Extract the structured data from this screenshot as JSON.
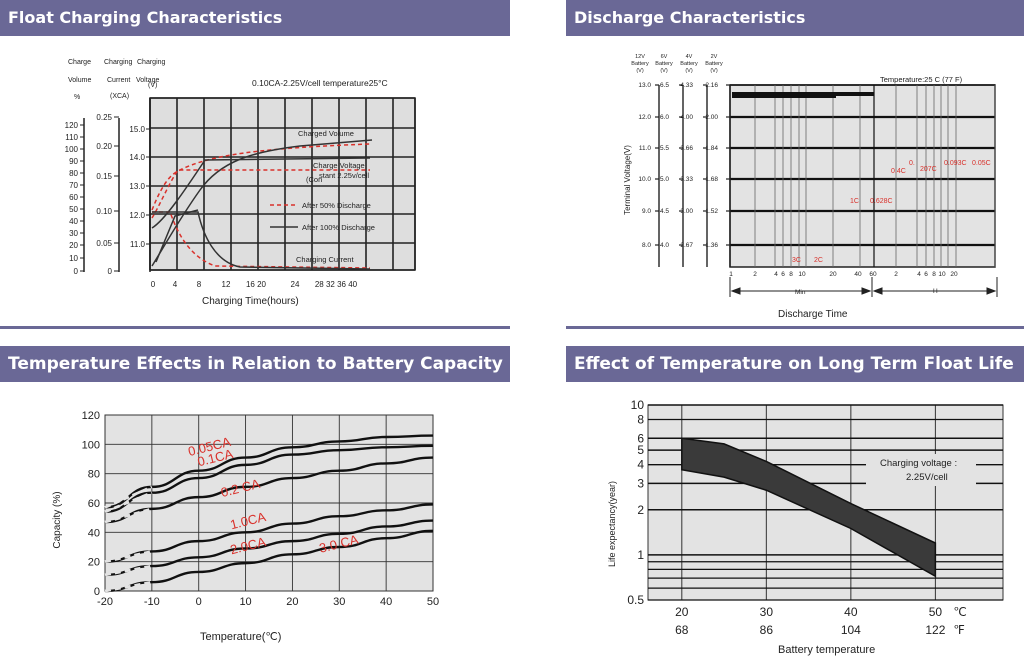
{
  "panels": {
    "float": {
      "title": "Float Charging Characteristics"
    },
    "discharge": {
      "title": "Discharge Characteristics"
    },
    "temp_capacity": {
      "title": "Temperature Effects in Relation to Battery Capacity"
    },
    "float_life": {
      "title": "Effect of Temperature on Long Term Float Life"
    }
  },
  "colors": {
    "header_bg": "#6a6896",
    "grid_bg": "#e3e3e3",
    "red": "#d9312b"
  },
  "chart_data": [
    {
      "id": "float",
      "type": "line",
      "annotation": "0.10CA-2.25V/cell temperature25°C",
      "xlabel": "Charging Time(hours)",
      "x_ticks": [
        "0",
        "4",
        "8",
        "12",
        "16 20",
        "24",
        "28 32 36 40"
      ],
      "axis_headers": {
        "charge_volume": [
          "Charge",
          "Volume",
          "%"
        ],
        "charging_current": [
          "Charging",
          "Current",
          "(XCA)"
        ],
        "charging_voltage": [
          "Charging",
          "Voltage",
          "(V)"
        ]
      },
      "charge_volume_ticks": [
        "120",
        "110",
        "100",
        "90",
        "80",
        "70",
        "60",
        "50",
        "40",
        "30",
        "20",
        "10",
        "0"
      ],
      "current_ticks": [
        "0.25",
        "0.20",
        "0.15",
        "0.10",
        "0.05",
        "0"
      ],
      "voltage_ticks": [
        "15.0",
        "14.0",
        "13.0",
        "12.0",
        "11.0"
      ],
      "labels": {
        "charged_volume": "Charged Volume",
        "charge_voltage_1": "Charge Voltage",
        "charge_voltage_2": "(Constant 2.25V/cell)",
        "charge_voltage_2a": "(Con",
        "charge_voltage_2b": "stant 2.25v/cell",
        "after50": "After 50% Discharge",
        "after100": "After 100% Discharge",
        "charging_current": "Charging Current"
      },
      "series": [
        {
          "name": "After 50% Discharge",
          "style": "dashed",
          "color": "#d9312b"
        },
        {
          "name": "After 100% Discharge",
          "style": "solid",
          "color": "#222222"
        }
      ]
    },
    {
      "id": "discharge",
      "type": "line",
      "xlabel": "Discharge Time",
      "temperature_note": "Temperature:25 C (77 F)",
      "col_headers": [
        [
          "12V",
          "Battery",
          "(V)"
        ],
        [
          "6V",
          "Battery",
          "(V)"
        ],
        [
          "4V",
          "Battery",
          "(V)"
        ],
        [
          "2V",
          "Battery",
          "(V)"
        ]
      ],
      "v12": [
        "13.0",
        "12.0",
        "11.0",
        "10.0",
        "9.0",
        "8.0"
      ],
      "v6": [
        "6.5",
        "6.0",
        "5.5",
        "5.0",
        "4.5",
        "4.0"
      ],
      "v4": [
        "4.33",
        "4.00",
        "3.66",
        "3.33",
        "3.00",
        "2.67"
      ],
      "v2": [
        "2.16",
        "2.00",
        "1.84",
        "1.68",
        "1.52",
        "1.36"
      ],
      "ylabel": "Terminal Voltage(V)",
      "x_ticks_min": [
        "1",
        "2",
        "4",
        "6",
        "8",
        "10",
        "20",
        "40",
        "60"
      ],
      "x_ticks_h": [
        "2",
        "4",
        "6",
        "8",
        "10",
        "20"
      ],
      "unit_min": "Min",
      "unit_h": "H",
      "rates": [
        "3C",
        "2C",
        "1C",
        "0.628C",
        "0.4C",
        "0.",
        "207C",
        "0.093C",
        "0.05C"
      ]
    },
    {
      "id": "temp_capacity",
      "type": "line",
      "xlabel": "Temperature(℃)",
      "ylabel": "Capacity  (%)",
      "x": [
        -20,
        -10,
        0,
        10,
        20,
        30,
        40,
        50
      ],
      "y_ticks": [
        0,
        20,
        40,
        60,
        80,
        100,
        120
      ],
      "xlim": [
        -20,
        50
      ],
      "ylim": [
        0,
        120
      ],
      "series": [
        {
          "name": "0.05CA",
          "x": [
            -20,
            -10,
            0,
            10,
            20,
            30,
            40,
            50
          ],
          "values": [
            57,
            71,
            82,
            91,
            98,
            102,
            105,
            106
          ]
        },
        {
          "name": "0.1CA",
          "x": [
            -20,
            -10,
            0,
            10,
            20,
            30,
            40,
            50
          ],
          "values": [
            54,
            67,
            77,
            86,
            93,
            96,
            98,
            99
          ]
        },
        {
          "name": "0.2 CA",
          "x": [
            -20,
            -10,
            0,
            10,
            20,
            30,
            40,
            50
          ],
          "values": [
            47,
            56,
            64,
            71,
            77,
            82,
            87,
            91
          ]
        },
        {
          "name": "1.0CA",
          "x": [
            -20,
            -10,
            0,
            10,
            20,
            30,
            40,
            50
          ],
          "values": [
            20,
            27,
            34,
            40,
            46,
            51,
            55,
            59
          ]
        },
        {
          "name": "2.0CA",
          "x": [
            -20,
            -10,
            0,
            10,
            20,
            30,
            40,
            50
          ],
          "values": [
            11,
            17,
            23,
            29,
            34,
            39,
            44,
            48
          ]
        },
        {
          "name": "3.0 CA",
          "x": [
            -20,
            -10,
            0,
            10,
            20,
            30,
            40,
            50
          ],
          "values": [
            0,
            6,
            13,
            19,
            25,
            30,
            36,
            41
          ]
        }
      ]
    },
    {
      "id": "float_life",
      "type": "area",
      "xlabel": "Battery temperature",
      "ylabel": "Life expectancy(year)",
      "x_ticks_c": [
        "20",
        "30",
        "40",
        "50"
      ],
      "x_ticks_f": [
        "68",
        "86",
        "104",
        "122"
      ],
      "unit_c": "℃",
      "unit_f": "℉",
      "y_ticks": [
        "10",
        "8",
        "6",
        "5",
        "4",
        "3",
        "2",
        "1",
        "0.5"
      ],
      "annotation_1": "Charging voltage :",
      "annotation_2": "2.25V/cell",
      "band": {
        "x": [
          20,
          25,
          30,
          40,
          50
        ],
        "upper": [
          6,
          5.5,
          4.2,
          2.2,
          1.2
        ],
        "lower": [
          3.7,
          3.3,
          2.7,
          1.5,
          0.72
        ]
      },
      "xlim": [
        16,
        58
      ],
      "ylim": [
        0.5,
        10
      ],
      "scale": "log"
    }
  ]
}
